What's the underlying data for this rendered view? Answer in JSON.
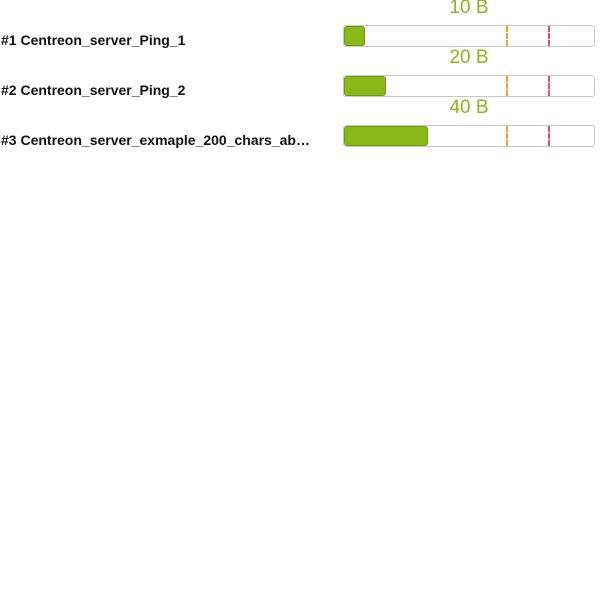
{
  "colors": {
    "ok": "#88b917",
    "warning": "#f0a030",
    "critical": "#f04a5a",
    "track_border": "#c8c8c8"
  },
  "resources": [
    {
      "label": "#1 Centreon_server_Ping_1",
      "value_text": "10 B",
      "fill_fraction": 0.084
    },
    {
      "label": "#2 Centreon_server_Ping_2",
      "value_text": "20 B",
      "fill_fraction": 0.168
    },
    {
      "label": "#3 Centreon_server_exmaple_200_chars_abcdef...",
      "value_text": "40 B",
      "fill_fraction": 0.336
    }
  ]
}
